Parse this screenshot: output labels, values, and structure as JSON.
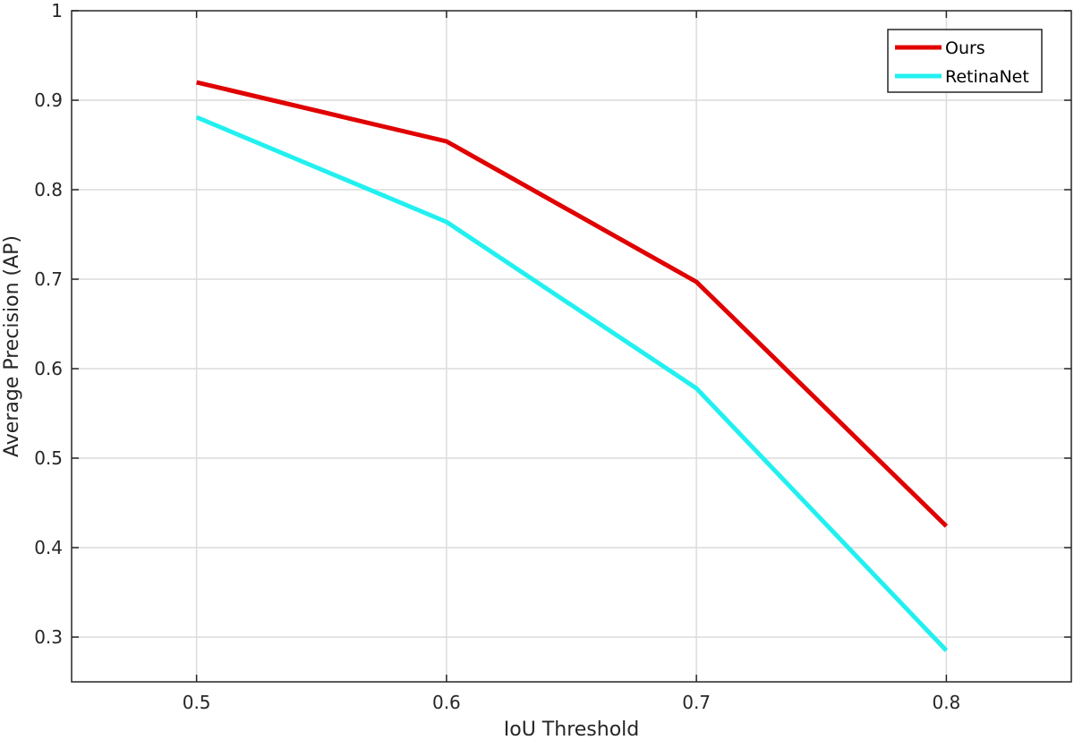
{
  "chart_data": {
    "type": "line",
    "xlabel": "IoU Threshold",
    "ylabel": "Average Precision (AP)",
    "xlim": [
      0.45,
      0.85
    ],
    "ylim": [
      0.25,
      1.0
    ],
    "xticks": [
      "0.5",
      "0.6",
      "0.7",
      "0.8"
    ],
    "yticks": [
      "0.3",
      "0.4",
      "0.5",
      "0.6",
      "0.7",
      "0.8",
      "0.9",
      "1"
    ],
    "grid": true,
    "legend_position": "top-right",
    "x": [
      0.5,
      0.6,
      0.7,
      0.8
    ],
    "series": [
      {
        "name": "Ours",
        "color": "#e00000",
        "values": [
          0.92,
          0.854,
          0.697,
          0.424
        ]
      },
      {
        "name": "RetinaNet",
        "color": "#22f0f0",
        "values": [
          0.881,
          0.764,
          0.578,
          0.285
        ]
      }
    ]
  }
}
